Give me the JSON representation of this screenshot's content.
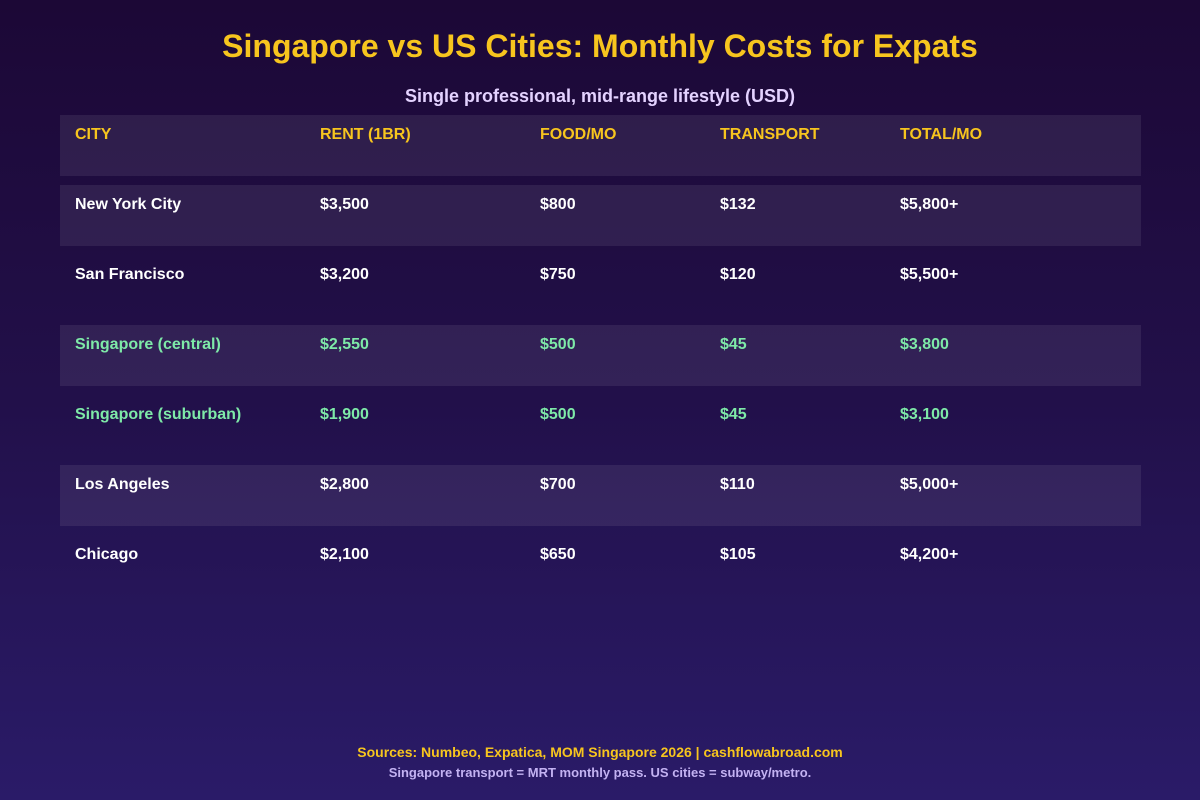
{
  "chart_data": {
    "type": "table",
    "title": "Singapore vs US Cities: Monthly Costs for Expats",
    "subtitle": "Single professional, mid-range lifestyle (USD)",
    "columns": [
      "CITY",
      "RENT (1BR)",
      "FOOD/MO",
      "TRANSPORT",
      "TOTAL/MO"
    ],
    "rows": [
      {
        "cells": [
          "New York City",
          "$3,500",
          "$800",
          "$132",
          "$5,800+"
        ],
        "highlight": false
      },
      {
        "cells": [
          "San Francisco",
          "$3,200",
          "$750",
          "$120",
          "$5,500+"
        ],
        "highlight": false
      },
      {
        "cells": [
          "Singapore (central)",
          "$2,550",
          "$500",
          "$45",
          "$3,800"
        ],
        "highlight": true
      },
      {
        "cells": [
          "Singapore (suburban)",
          "$1,900",
          "$500",
          "$45",
          "$3,100"
        ],
        "highlight": true
      },
      {
        "cells": [
          "Los Angeles",
          "$2,800",
          "$700",
          "$110",
          "$5,000+"
        ],
        "highlight": false
      },
      {
        "cells": [
          "Chicago",
          "$2,100",
          "$650",
          "$105",
          "$4,200+"
        ],
        "highlight": false
      }
    ],
    "colors": {
      "header": "#f7c51e",
      "highlight": "#7eeaa8",
      "text": "#ffffff",
      "background": "#1c0836"
    }
  },
  "footer": {
    "sources": "Sources: Numbeo, Expatica, MOM Singapore 2026 | cashflowabroad.com",
    "note": "Singapore transport = MRT monthly pass. US cities = subway/metro."
  }
}
